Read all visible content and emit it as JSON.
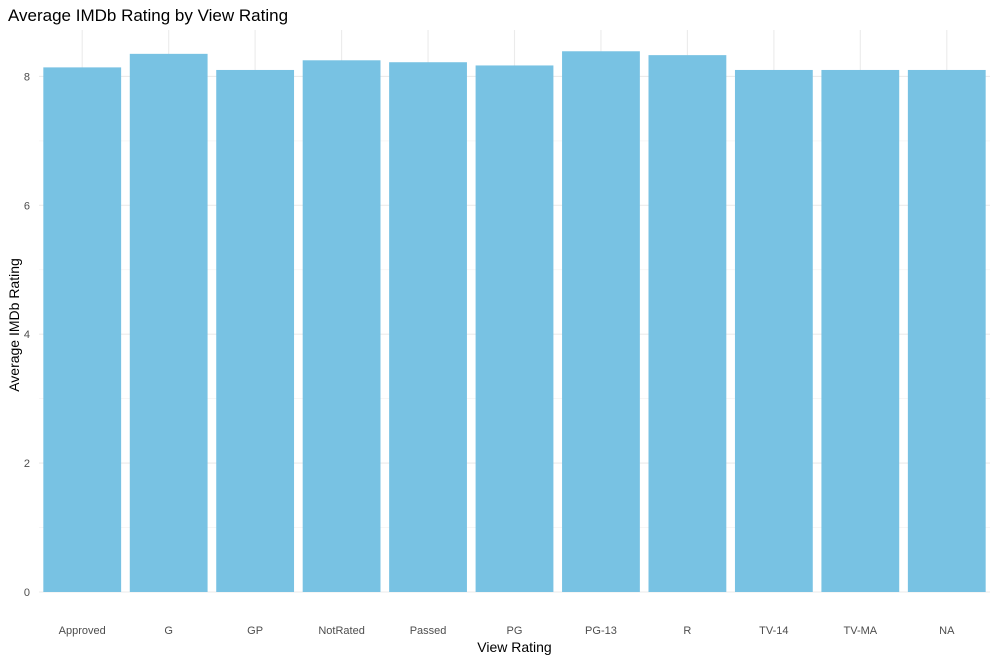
{
  "chart_data": {
    "type": "bar",
    "title": "Average IMDb Rating by View Rating",
    "xlabel": "View Rating",
    "ylabel": "Average IMDb Rating",
    "categories": [
      "Approved",
      "G",
      "GP",
      "NotRated",
      "Passed",
      "PG",
      "PG-13",
      "R",
      "TV-14",
      "TV-MA",
      "NA"
    ],
    "values": [
      8.14,
      8.35,
      8.1,
      8.25,
      8.22,
      8.17,
      8.39,
      8.33,
      8.1,
      8.1,
      8.1
    ],
    "ylim": [
      0,
      8.72
    ],
    "yticks": [
      0,
      2,
      4,
      6,
      8
    ],
    "grid": true,
    "legend": "none",
    "colors": {
      "bar": "#78c2e3",
      "grid": "#ebebeb",
      "background": "#ffffff"
    }
  }
}
